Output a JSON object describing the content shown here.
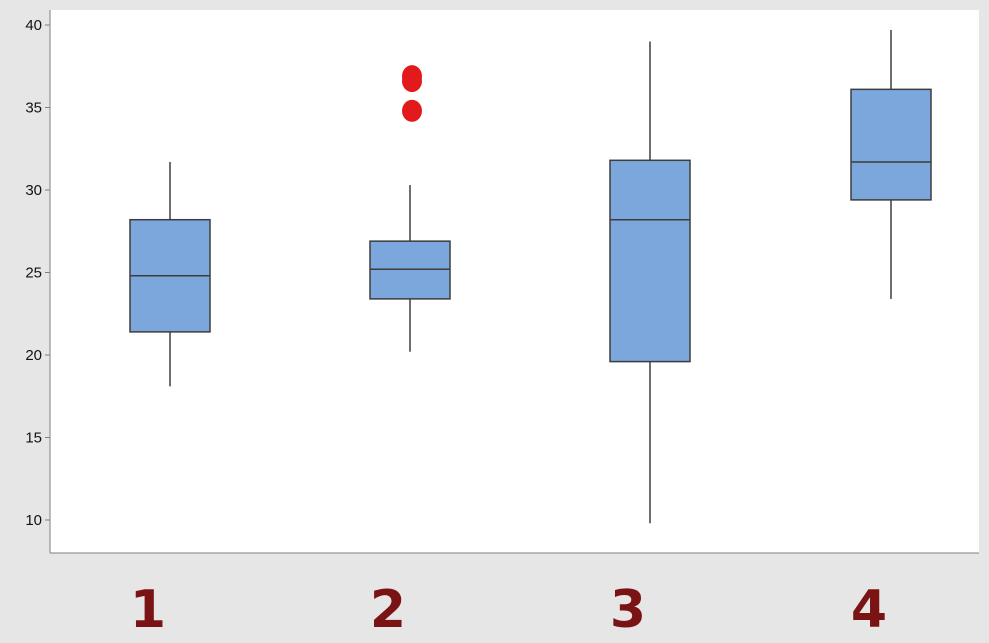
{
  "chart_data": {
    "type": "box",
    "title": "",
    "xlabel": "",
    "ylabel": "",
    "ylim": [
      8,
      40.5
    ],
    "yticks": [
      10,
      15,
      20,
      25,
      30,
      35,
      40
    ],
    "ytick_labels": [
      "10",
      "15",
      "20",
      "25",
      "30",
      "35",
      "40"
    ],
    "categories": [
      "1",
      "2",
      "3",
      "4"
    ],
    "grid": false,
    "legend": "none",
    "boxes": [
      {
        "category": "1",
        "whisker_low": 18.1,
        "q1": 21.4,
        "median": 24.8,
        "q3": 28.2,
        "whisker_high": 31.7,
        "outliers": []
      },
      {
        "category": "2",
        "whisker_low": 20.2,
        "q1": 23.4,
        "median": 25.2,
        "q3": 26.9,
        "whisker_high": 30.3,
        "outliers": [
          34.8,
          36.6,
          36.9
        ]
      },
      {
        "category": "3",
        "whisker_low": 9.8,
        "q1": 19.6,
        "median": 28.2,
        "q3": 31.8,
        "whisker_high": 39.0,
        "outliers": []
      },
      {
        "category": "4",
        "whisker_low": 23.4,
        "q1": 29.4,
        "median": 31.7,
        "q3": 36.1,
        "whisker_high": 39.7,
        "outliers": []
      }
    ],
    "colors": {
      "plot_background": "#ffffff",
      "outer_background": "#e6e6e6",
      "box_fill": "#7ba7dc",
      "box_stroke": "#3d3d3d",
      "whisker": "#3d3d3d",
      "outlier": "#e31a1c",
      "category_label": "#7a1414",
      "axis": "#7f7f7f"
    }
  }
}
